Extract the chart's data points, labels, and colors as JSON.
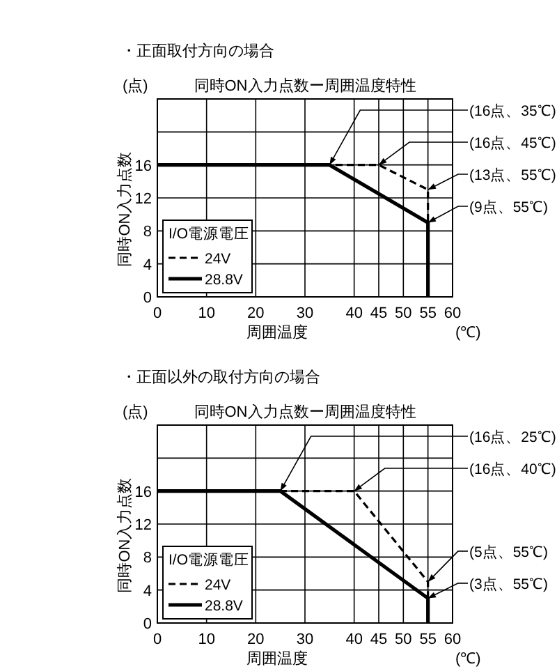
{
  "chart_data": [
    {
      "type": "line",
      "subtitle": "・正面取付方向の場合",
      "title": "同時ON入力点数ー周囲温度特性",
      "xlabel": "周囲温度",
      "ylabel": "同時ON入力点数",
      "legend_title": "I/O電源電圧",
      "legend": "bottom left",
      "grid": true,
      "xlim": [
        0,
        60
      ],
      "xticks": [
        0,
        10,
        20,
        30,
        40,
        45,
        50,
        55,
        60
      ],
      "ylim": [
        0,
        24
      ],
      "yticks": [
        0,
        4,
        8,
        12,
        16,
        {
          "value": 20,
          "label": null
        }
      ],
      "series": [
        {
          "name": "24V",
          "color": "#000000",
          "line_style": "dashed",
          "x": [
            0,
            45,
            55,
            55
          ],
          "values": [
            16,
            16,
            13,
            0
          ]
        },
        {
          "name": "28.8V",
          "color": "#000000",
          "line_style": "solid",
          "x": [
            0,
            35,
            55,
            55
          ],
          "values": [
            16,
            16,
            9,
            0
          ]
        }
      ],
      "annotations": [
        "(点)",
        "(℃)",
        {
          "text": "(16点、35℃)",
          "x": 35,
          "y": 16
        },
        {
          "text": "(16点、45℃)",
          "x": 45,
          "y": 16
        },
        {
          "text": "(13点、55℃)",
          "x": 55,
          "y": 13
        },
        {
          "text": "(9点、55℃)",
          "x": 55,
          "y": 9
        }
      ]
    },
    {
      "type": "line",
      "subtitle": "・正面以外の取付方向の場合",
      "title": "同時ON入力点数ー周囲温度特性",
      "xlabel": "周囲温度",
      "ylabel": "同時ON入力点数",
      "legend_title": "I/O電源電圧",
      "legend": "bottom left",
      "grid": true,
      "xlim": [
        0,
        60
      ],
      "xticks": [
        0,
        10,
        20,
        30,
        40,
        45,
        50,
        55,
        60
      ],
      "ylim": [
        0,
        24
      ],
      "yticks": [
        0,
        4,
        8,
        12,
        16,
        {
          "value": 20,
          "label": null
        }
      ],
      "series": [
        {
          "name": "24V",
          "color": "#000000",
          "line_style": "dashed",
          "x": [
            0,
            40,
            55,
            55
          ],
          "values": [
            16,
            16,
            5,
            0
          ]
        },
        {
          "name": "28.8V",
          "color": "#000000",
          "line_style": "solid",
          "x": [
            0,
            25,
            55,
            55
          ],
          "values": [
            16,
            16,
            3,
            0
          ]
        }
      ],
      "annotations": [
        "(点)",
        "(℃)",
        {
          "text": "(16点、25℃)",
          "x": 25,
          "y": 16
        },
        {
          "text": "(16点、40℃)",
          "x": 40,
          "y": 16
        },
        {
          "text": "(5点、55℃)",
          "x": 55,
          "y": 5
        },
        {
          "text": "(3点、55℃)",
          "x": 55,
          "y": 3
        }
      ]
    }
  ]
}
